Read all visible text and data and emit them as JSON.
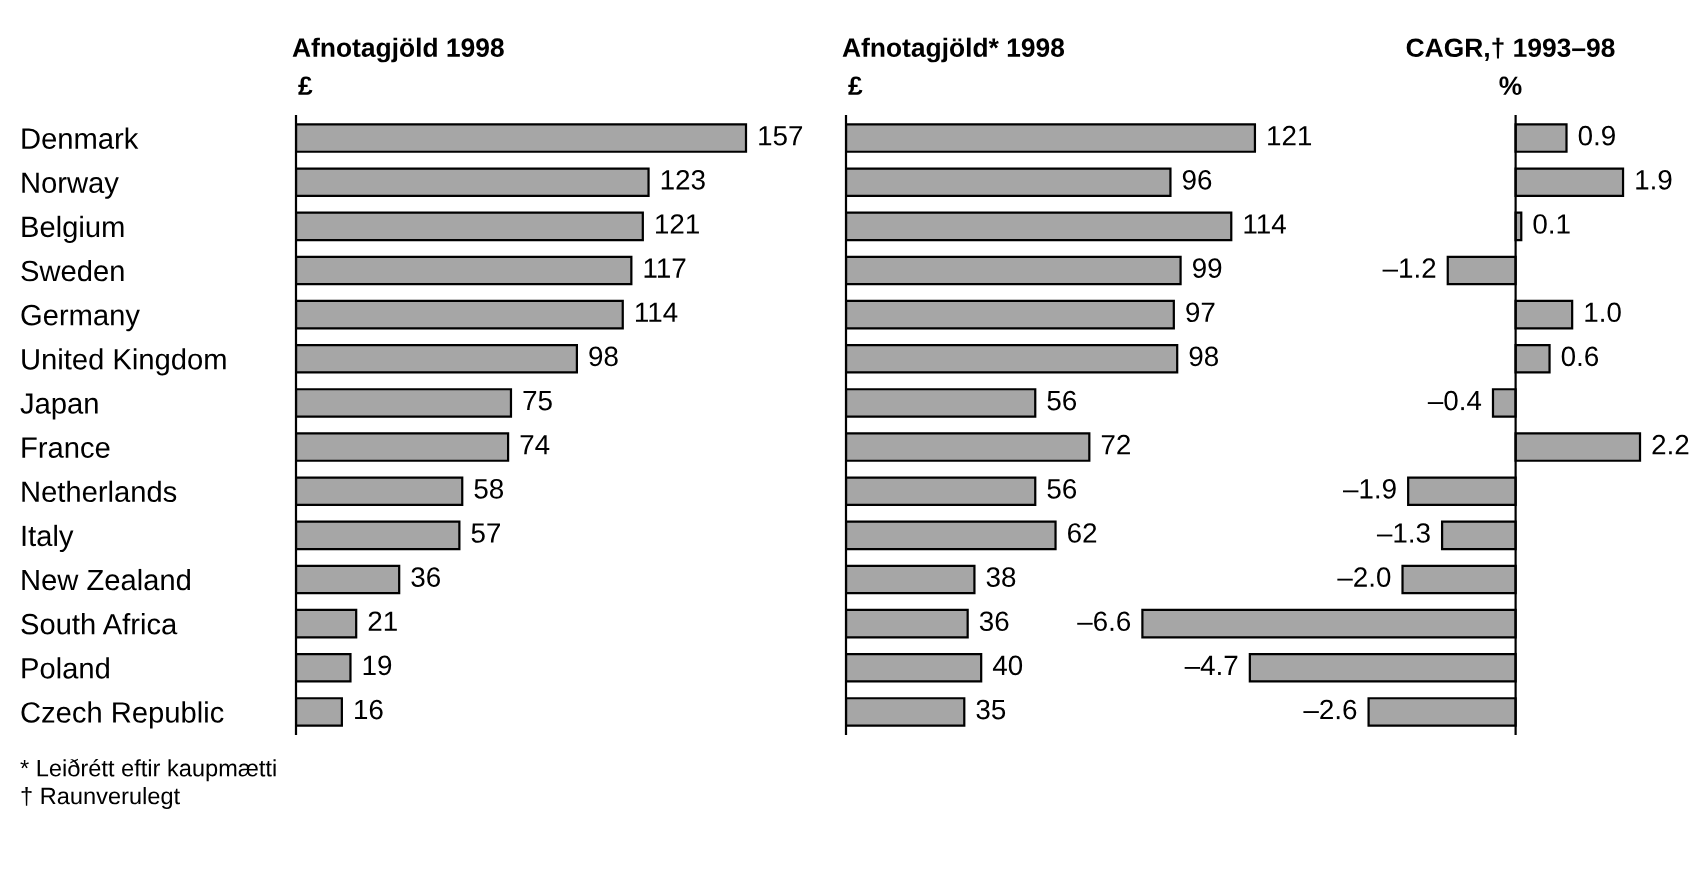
{
  "chart_data": [
    {
      "type": "bar",
      "orientation": "horizontal",
      "title": "Afnotagjöld 1998",
      "subtitle": "£",
      "categories": [
        "Denmark",
        "Norway",
        "Belgium",
        "Sweden",
        "Germany",
        "United Kingdom",
        "Japan",
        "France",
        "Netherlands",
        "Italy",
        "New Zealand",
        "South Africa",
        "Poland",
        "Czech Republic"
      ],
      "values": [
        157,
        123,
        121,
        117,
        114,
        98,
        75,
        74,
        58,
        57,
        36,
        21,
        19,
        16
      ],
      "color": "#a6a6a6",
      "data_labels": true,
      "tick_labels": "y",
      "grid": false,
      "legend": false,
      "annotations": [
        "* Leiðrétt eftir kaupmætti",
        "† Raunverulegt"
      ]
    },
    {
      "type": "bar",
      "orientation": "horizontal",
      "title": "Afnotagjöld* 1998",
      "subtitle": "£",
      "categories": [
        null,
        null,
        null,
        null,
        null,
        null,
        null,
        null,
        null,
        null,
        null,
        null,
        null,
        null
      ],
      "values": [
        121,
        96,
        114,
        99,
        97,
        98,
        56,
        72,
        56,
        62,
        38,
        36,
        40,
        35
      ],
      "color": "#a6a6a6",
      "data_labels": true,
      "tick_labels": false,
      "grid": false,
      "legend": false
    },
    {
      "type": "bar",
      "orientation": "horizontal",
      "title": "CAGR,† 1993–98",
      "subtitle": "%",
      "categories": [
        null,
        null,
        null,
        null,
        null,
        null,
        null,
        null,
        null,
        null,
        null,
        null,
        null,
        null
      ],
      "values": [
        0.9,
        1.9,
        0.1,
        -1.2,
        1.0,
        0.6,
        -0.4,
        2.2,
        -1.9,
        -1.3,
        -2.0,
        -6.6,
        -4.7,
        -2.6
      ],
      "value_labels": [
        "0.9",
        "1.9",
        "0.1",
        "–1.2",
        "1.0",
        "0.6",
        "–0.4",
        "2.2",
        "–1.9",
        "–1.3",
        "–2.0",
        "–6.6",
        "–4.7",
        "–2.6"
      ],
      "color": "#a6a6a6",
      "tick_labels": false,
      "grid": false,
      "legend": false
    }
  ]
}
